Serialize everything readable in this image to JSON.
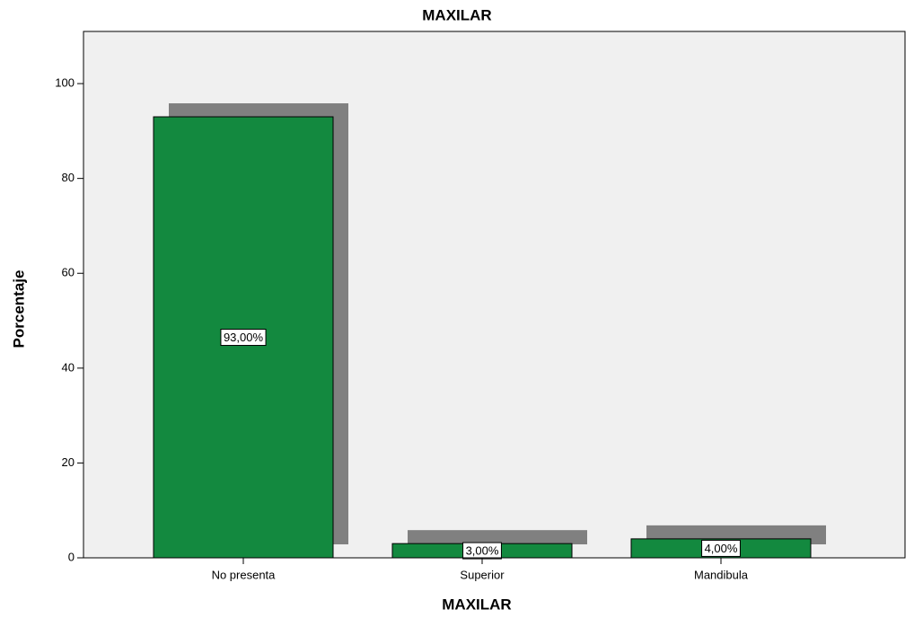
{
  "chart_data": {
    "type": "bar",
    "title": "MAXILAR",
    "x_label": "MAXILAR",
    "y_label": "Porcentaje",
    "categories": [
      "No presenta",
      "Superior",
      "Mandibula"
    ],
    "values": [
      93,
      3,
      4
    ],
    "value_labels": [
      "93,00%",
      "3,00%",
      "4,00%"
    ],
    "color": "#13893f",
    "shadow_color": "#808080",
    "ylim": [
      0,
      111
    ],
    "yticks": [
      0,
      20,
      40,
      60,
      80,
      100
    ],
    "grid": false
  }
}
